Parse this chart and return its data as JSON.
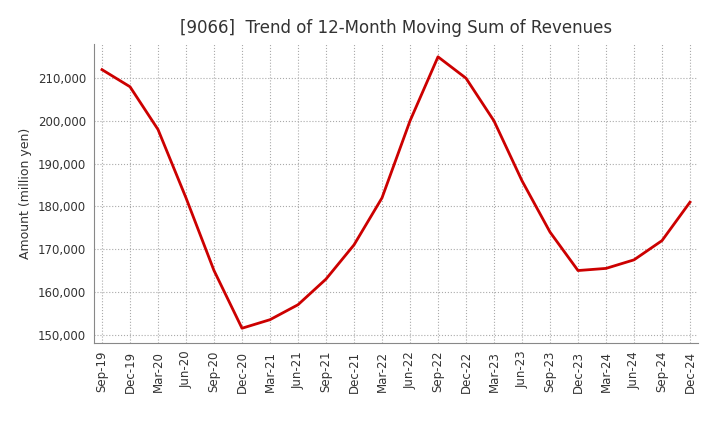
{
  "title": "[9066]  Trend of 12-Month Moving Sum of Revenues",
  "ylabel": "Amount (million yen)",
  "background_color": "#ffffff",
  "grid_color": "#aaaaaa",
  "line_color": "#cc0000",
  "title_fontsize": 12,
  "label_fontsize": 9,
  "tick_fontsize": 8.5,
  "x_labels": [
    "Sep-19",
    "Dec-19",
    "Mar-20",
    "Jun-20",
    "Sep-20",
    "Dec-20",
    "Mar-21",
    "Jun-21",
    "Sep-21",
    "Dec-21",
    "Mar-22",
    "Jun-22",
    "Sep-22",
    "Dec-22",
    "Mar-23",
    "Jun-23",
    "Sep-23",
    "Dec-23",
    "Mar-24",
    "Jun-24",
    "Sep-24",
    "Dec-24"
  ],
  "y_values": [
    212000,
    208000,
    198000,
    182000,
    165000,
    151500,
    153500,
    157000,
    163000,
    171000,
    182000,
    200000,
    215000,
    210000,
    200000,
    186000,
    174000,
    165000,
    165500,
    167500,
    172000,
    181000
  ],
  "ylim": [
    148000,
    218000
  ],
  "yticks": [
    150000,
    160000,
    170000,
    180000,
    190000,
    200000,
    210000
  ]
}
